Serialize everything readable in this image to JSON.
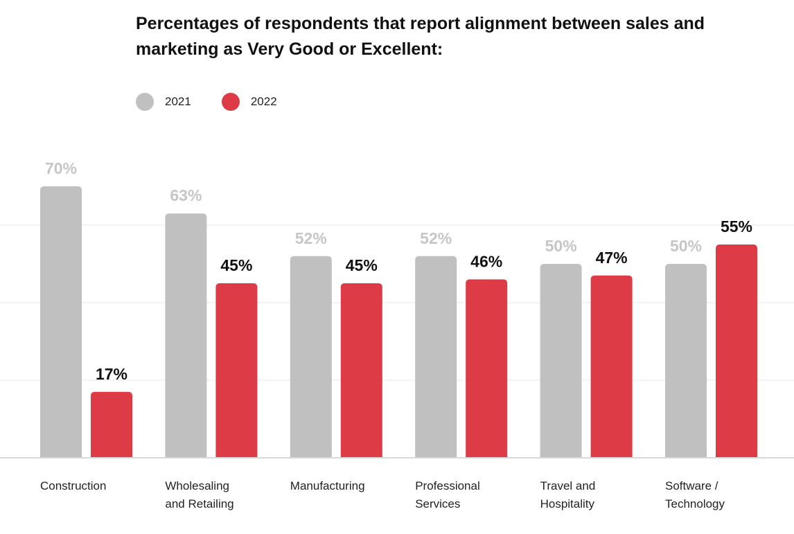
{
  "chart_data": {
    "type": "bar",
    "title": "Percentages of respondents that report alignment between sales and marketing as Very Good or Excellent:",
    "categories": [
      [
        "Construction"
      ],
      [
        "Wholesaling",
        "and Retailing"
      ],
      [
        "Manufacturing"
      ],
      [
        "Professional",
        "Services"
      ],
      [
        "Travel and",
        "Hospitality"
      ],
      [
        "Software /",
        "Technology"
      ]
    ],
    "series": [
      {
        "name": "2021",
        "color": "#c0c0c0",
        "label_color": "#c6c6c6",
        "values": [
          70,
          63,
          52,
          52,
          50,
          50
        ],
        "labels": [
          "70%",
          "63%",
          "52%",
          "52%",
          "50%",
          "50%"
        ]
      },
      {
        "name": "2022",
        "color": "#dd3c47",
        "label_color": "#111111",
        "values": [
          17,
          45,
          45,
          46,
          47,
          55
        ],
        "labels": [
          "17%",
          "45%",
          "45%",
          "46%",
          "47%",
          "55%"
        ]
      }
    ],
    "ylim": [
      0,
      100
    ],
    "grid": true,
    "legend": "top-left"
  }
}
